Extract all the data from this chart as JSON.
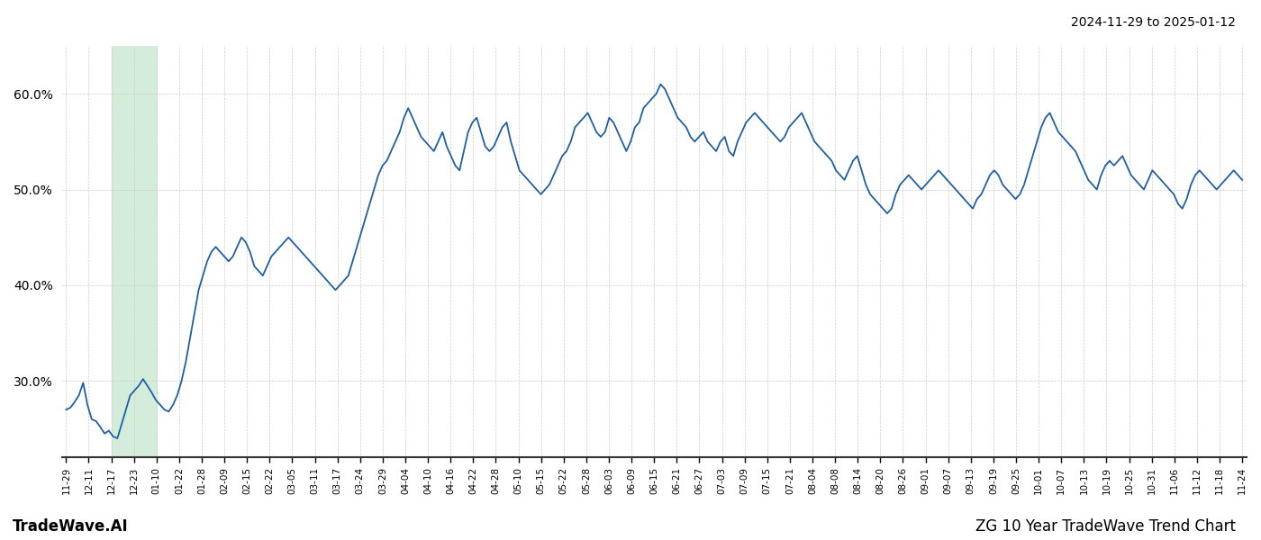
{
  "title_right": "2024-11-29 to 2025-01-12",
  "footer_left": "TradeWave.AI",
  "footer_right": "ZG 10 Year TradeWave Trend Chart",
  "line_color": "#1f5fa6",
  "line_width": 1.3,
  "bg_color": "#ffffff",
  "grid_color": "#cccccc",
  "shade_color": "#d4edda",
  "ylim": [
    22,
    65
  ],
  "yticks": [
    30.0,
    40.0,
    50.0,
    60.0
  ],
  "xtick_labels": [
    "11-29",
    "12-11",
    "12-17",
    "12-23",
    "01-10",
    "01-22",
    "01-28",
    "02-09",
    "02-15",
    "02-22",
    "03-05",
    "03-11",
    "03-17",
    "03-24",
    "03-29",
    "04-04",
    "04-10",
    "04-16",
    "04-22",
    "04-28",
    "05-10",
    "05-15",
    "05-22",
    "05-28",
    "06-03",
    "06-09",
    "06-15",
    "06-21",
    "06-27",
    "07-03",
    "07-09",
    "07-15",
    "07-21",
    "08-04",
    "08-08",
    "08-14",
    "08-20",
    "08-26",
    "09-01",
    "09-07",
    "09-13",
    "09-19",
    "09-25",
    "10-01",
    "10-07",
    "10-13",
    "10-19",
    "10-25",
    "10-31",
    "11-06",
    "11-12",
    "11-18",
    "11-24"
  ],
  "shade_x_start_label": "12-17",
  "shade_x_end_label": "01-10",
  "values": [
    27.0,
    27.2,
    27.8,
    28.5,
    29.8,
    27.5,
    26.0,
    25.8,
    25.2,
    24.5,
    24.8,
    24.2,
    24.0,
    25.5,
    27.0,
    28.5,
    29.0,
    29.5,
    30.2,
    29.5,
    28.8,
    28.0,
    27.5,
    27.0,
    26.8,
    27.5,
    28.5,
    30.0,
    32.0,
    34.5,
    37.0,
    39.5,
    41.0,
    42.5,
    43.5,
    44.0,
    43.5,
    43.0,
    42.5,
    43.0,
    44.0,
    45.0,
    44.5,
    43.5,
    42.0,
    41.5,
    41.0,
    42.0,
    43.0,
    43.5,
    44.0,
    44.5,
    45.0,
    44.5,
    44.0,
    43.5,
    43.0,
    42.5,
    42.0,
    41.5,
    41.0,
    40.5,
    40.0,
    39.5,
    40.0,
    40.5,
    41.0,
    42.5,
    44.0,
    45.5,
    47.0,
    48.5,
    50.0,
    51.5,
    52.5,
    53.0,
    54.0,
    55.0,
    56.0,
    57.5,
    58.5,
    57.5,
    56.5,
    55.5,
    55.0,
    54.5,
    54.0,
    55.0,
    56.0,
    54.5,
    53.5,
    52.5,
    52.0,
    54.0,
    56.0,
    57.0,
    57.5,
    56.0,
    54.5,
    54.0,
    54.5,
    55.5,
    56.5,
    57.0,
    55.0,
    53.5,
    52.0,
    51.5,
    51.0,
    50.5,
    50.0,
    49.5,
    50.0,
    50.5,
    51.5,
    52.5,
    53.5,
    54.0,
    55.0,
    56.5,
    57.0,
    57.5,
    58.0,
    57.0,
    56.0,
    55.5,
    56.0,
    57.5,
    57.0,
    56.0,
    55.0,
    54.0,
    55.0,
    56.5,
    57.0,
    58.5,
    59.0,
    59.5,
    60.0,
    61.0,
    60.5,
    59.5,
    58.5,
    57.5,
    57.0,
    56.5,
    55.5,
    55.0,
    55.5,
    56.0,
    55.0,
    54.5,
    54.0,
    55.0,
    55.5,
    54.0,
    53.5,
    55.0,
    56.0,
    57.0,
    57.5,
    58.0,
    57.5,
    57.0,
    56.5,
    56.0,
    55.5,
    55.0,
    55.5,
    56.5,
    57.0,
    57.5,
    58.0,
    57.0,
    56.0,
    55.0,
    54.5,
    54.0,
    53.5,
    53.0,
    52.0,
    51.5,
    51.0,
    52.0,
    53.0,
    53.5,
    52.0,
    50.5,
    49.5,
    49.0,
    48.5,
    48.0,
    47.5,
    48.0,
    49.5,
    50.5,
    51.0,
    51.5,
    51.0,
    50.5,
    50.0,
    50.5,
    51.0,
    51.5,
    52.0,
    51.5,
    51.0,
    50.5,
    50.0,
    49.5,
    49.0,
    48.5,
    48.0,
    49.0,
    49.5,
    50.5,
    51.5,
    52.0,
    51.5,
    50.5,
    50.0,
    49.5,
    49.0,
    49.5,
    50.5,
    52.0,
    53.5,
    55.0,
    56.5,
    57.5,
    58.0,
    57.0,
    56.0,
    55.5,
    55.0,
    54.5,
    54.0,
    53.0,
    52.0,
    51.0,
    50.5,
    50.0,
    51.5,
    52.5,
    53.0,
    52.5,
    53.0,
    53.5,
    52.5,
    51.5,
    51.0,
    50.5,
    50.0,
    51.0,
    52.0,
    51.5,
    51.0,
    50.5,
    50.0,
    49.5,
    48.5,
    48.0,
    49.0,
    50.5,
    51.5,
    52.0,
    51.5,
    51.0,
    50.5,
    50.0,
    50.5,
    51.0,
    51.5,
    52.0,
    51.5,
    51.0
  ]
}
